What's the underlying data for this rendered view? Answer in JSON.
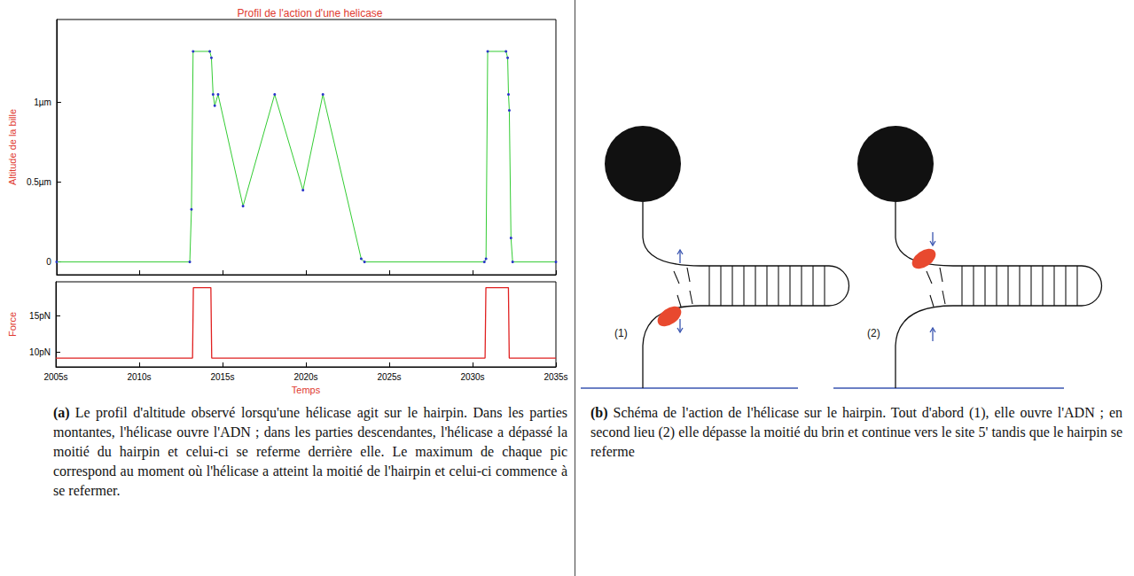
{
  "chart_data": [
    {
      "type": "line",
      "title": "Profil de l'action d'une helicase",
      "y_label": "Altitude de la bille",
      "x": [
        2005,
        2013.0,
        2013.1,
        2013.2,
        2014.2,
        2014.3,
        2014.4,
        2014.5,
        2014.7,
        2016.2,
        2018.1,
        2019.8,
        2021.0,
        2023.3,
        2023.5,
        2030.7,
        2030.8,
        2030.9,
        2032.0,
        2032.1,
        2032.15,
        2032.2,
        2032.3,
        2032.4,
        2035
      ],
      "series": [
        {
          "color": "#2b36c9",
          "marker": "circle",
          "line_style": "solid",
          "values": [
            0,
            0,
            0.33,
            1.32,
            1.32,
            1.28,
            1.05,
            0.98,
            1.05,
            0.35,
            1.05,
            0.45,
            1.05,
            0.02,
            0,
            0,
            0.02,
            1.32,
            1.32,
            1.28,
            1.05,
            0.95,
            0.15,
            0,
            0
          ]
        }
      ],
      "xlim": [
        2005,
        2035
      ],
      "xticks": [
        2005,
        2010,
        2015,
        2020,
        2025,
        2030,
        2035
      ],
      "ylim": [
        -0.08,
        1.52
      ],
      "yticks": [
        0,
        {
          "value": 0.5,
          "label": "0.5µm"
        },
        {
          "value": 1,
          "label": "1µm"
        }
      ],
      "grid": false,
      "tick_labels": "y"
    },
    {
      "type": "line",
      "x_label": "Temps",
      "y_label": "Force",
      "x": [
        2005,
        2013.2,
        2013.25,
        2014.3,
        2014.35,
        2030.75,
        2030.8,
        2032.15,
        2032.2,
        2035
      ],
      "series": [
        {
          "color": "#e02020",
          "marker": "none",
          "line_style": "solid",
          "values": [
            9.2,
            9.2,
            18.8,
            18.8,
            9.2,
            9.2,
            18.8,
            18.8,
            9.2,
            9.2
          ]
        }
      ],
      "xlim": [
        2005,
        2035
      ],
      "xticks": [
        {
          "value": 2005,
          "label": "2005s"
        },
        {
          "value": 2010,
          "label": "2010s"
        },
        {
          "value": 2015,
          "label": "2015s"
        },
        {
          "value": 2020,
          "label": "2020s"
        },
        {
          "value": 2025,
          "label": "2025s"
        },
        {
          "value": 2030,
          "label": "2030s"
        },
        {
          "value": 2035,
          "label": "2035s"
        }
      ],
      "ylim": [
        8,
        19.6
      ],
      "yticks": [
        {
          "value": 10,
          "label": "10pN"
        },
        {
          "value": 15,
          "label": "15pN"
        }
      ],
      "grid": false
    }
  ],
  "captions": {
    "a": {
      "label": "(a)",
      "text": "Le profil d'altitude observé lorsqu'une hélicase agit sur le hairpin. Dans les parties montantes, l'hélicase ouvre l'ADN ; dans les parties descendantes, l'hélicase a dépassé la moitié du hairpin et celui-ci se referme derrière elle. Le maximum de chaque pic correspond au moment où l'hélicase a atteint la moitié de l'hairpin et celui-ci commence à se refermer."
    },
    "b": {
      "label": "(b)",
      "text": "Schéma de l'action de l'hélicase sur le hairpin. Tout d'abord (1), elle ouvre l'ADN ; en second lieu (2) elle dépasse la moitié du brin et continue vers le site 5' tandis que le hairpin se referme"
    }
  },
  "diagram": {
    "panels": [
      {
        "label": "(1)"
      },
      {
        "label": "(2)"
      }
    ]
  }
}
